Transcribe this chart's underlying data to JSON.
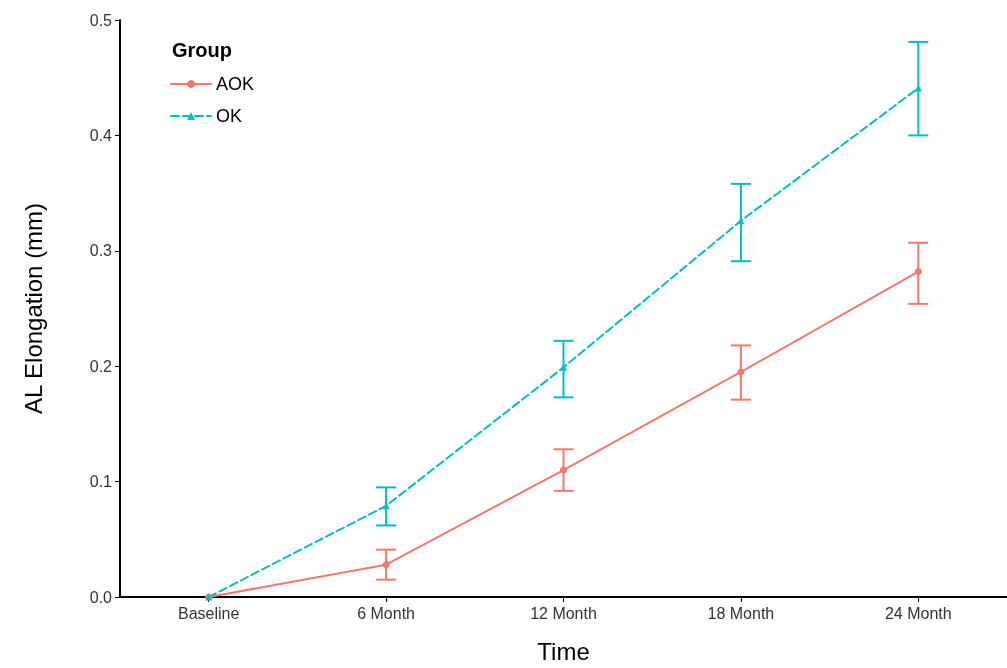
{
  "chart_data": {
    "type": "line",
    "xlabel": "Time",
    "ylabel": "AL Elongation (mm)",
    "legend_title": "Group",
    "legend": "top left",
    "grid": false,
    "categories": [
      "Baseline",
      "6 Month",
      "12 Month",
      "18 Month",
      "24 Month"
    ],
    "ylim": [
      0,
      0.5
    ],
    "yticks": [
      {
        "value": 0,
        "label": "0.0"
      },
      0.1,
      0.2,
      0.3,
      0.4,
      0.5
    ],
    "series": [
      {
        "name": "AOK",
        "color": "#f8766d",
        "marker": "circle",
        "line_style": "solid",
        "values": [
          0,
          0.028,
          0.11,
          0.195,
          0.282
        ],
        "errors": [
          null,
          [
            0.015,
            0.041
          ],
          [
            0.092,
            0.128
          ],
          [
            0.171,
            0.218
          ],
          [
            0.254,
            0.307
          ]
        ]
      },
      {
        "name": "OK",
        "color": "#00bfc4",
        "marker": "triangle",
        "line_style": "dashed",
        "values": [
          0,
          0.079,
          0.199,
          0.326,
          0.441
        ],
        "errors": [
          null,
          [
            0.062,
            0.095
          ],
          [
            0.173,
            0.222
          ],
          [
            0.291,
            0.358
          ],
          [
            0.4,
            0.481
          ]
        ]
      }
    ]
  }
}
